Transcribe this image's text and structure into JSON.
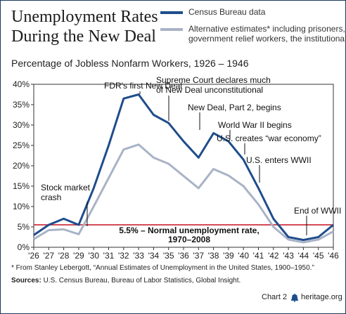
{
  "header": {
    "title_line1": "Unemployment Rates",
    "title_line2": "During the New Deal",
    "subtitle": "Percentage of Jobless Nonfarm Workers, 1926 – 1946"
  },
  "legend": {
    "census": "Census Bureau data",
    "alt_line1": "Alternative estimates* including prisoners,",
    "alt_line2": "government relief workers, the institutionalized"
  },
  "colors": {
    "census": "#1f4d8c",
    "alt": "#a9b3c6",
    "normal": "#c8202f",
    "axis": "#333333",
    "frame": "#1b3a5c"
  },
  "chart_data": {
    "type": "line",
    "x": [
      "'26",
      "'27",
      "'28",
      "'29",
      "'30",
      "'31",
      "'32",
      "'33",
      "'34",
      "'35",
      "'36",
      "'37",
      "'38",
      "'39",
      "'40",
      "'41",
      "'42",
      "'43",
      "'44",
      "'45",
      "'46"
    ],
    "ylim": [
      0,
      40
    ],
    "yticks": [
      "0%",
      "5%",
      "10%",
      "15%",
      "20%",
      "25%",
      "30%",
      "35%",
      "40%"
    ],
    "series": [
      {
        "name": "Census Bureau data",
        "values": [
          3.0,
          5.5,
          7.0,
          5.5,
          14.5,
          25.0,
          36.5,
          37.5,
          32.5,
          30.5,
          26.0,
          22.0,
          28.0,
          26.0,
          21.5,
          14.5,
          7.0,
          2.5,
          1.8,
          2.5,
          5.5
        ]
      },
      {
        "name": "Alternative estimates* including prisoners, government relief workers, the institutionalized",
        "values": [
          2.0,
          4.2,
          4.4,
          3.2,
          10.0,
          17.0,
          24.0,
          25.2,
          22.0,
          20.5,
          17.5,
          14.5,
          19.2,
          17.6,
          15.0,
          10.5,
          5.0,
          1.9,
          1.2,
          1.9,
          3.9
        ]
      }
    ],
    "reference_line": {
      "value": 5.5,
      "label_line1": "5.5% – Normal unemployment rate,",
      "label_line2": "1970–2008"
    },
    "annotations": [
      {
        "lines": [
          "FDR's first New Deal"
        ],
        "x_index": 7
      },
      {
        "lines": [
          "Supreme Court declares much",
          "of New Deal unconstitutional"
        ],
        "x_index": 9
      },
      {
        "lines": [
          "New Deal, Part 2, begins"
        ],
        "x_index": 11
      },
      {
        "lines": [
          "World War II begins"
        ],
        "x_index": 13
      },
      {
        "lines": [
          "U.S. creates “war economy”"
        ],
        "x_index": 14
      },
      {
        "lines": [
          "U.S. enters WWII"
        ],
        "x_index": 15
      },
      {
        "lines": [
          "Stock market",
          "crash"
        ],
        "x_index": 3
      },
      {
        "lines": [
          "End of WWII"
        ],
        "x_index": 19
      }
    ]
  },
  "footer": {
    "footnote": "* From Stanley Lebergott, “Annual Estimates of Unemployment in the United States, 1900–1950.”",
    "sources_label": "Sources:",
    "sources_text": " U.S. Census Bureau, Bureau of Labor Statistics, Global Insight.",
    "chart_number": "Chart 2",
    "site": "heritage.org"
  },
  "icons": {
    "brand": "liberty-bell-icon"
  }
}
